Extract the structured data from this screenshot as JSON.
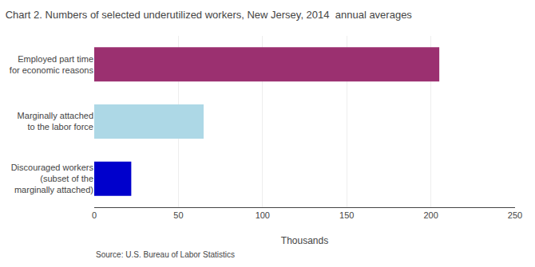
{
  "chart_data": {
    "type": "bar",
    "orientation": "horizontal",
    "title": "Chart 2. Numbers of selected underutilized workers, New Jersey, 2014  annual averages",
    "categories": [
      "Discouraged workers\n(subset of the\nmarginally attached)",
      "Marginally attached\nto the labor force",
      "Employed part time\nfor economic reasons"
    ],
    "values": [
      22,
      65,
      205
    ],
    "colors": [
      "#0000CC",
      "#ADD8E6",
      "#9B3070"
    ],
    "xlim": [
      0,
      250
    ],
    "xticks": [
      0,
      50,
      100,
      150,
      200,
      250
    ],
    "xlabel": "Thousands",
    "grid": true,
    "annotations": [
      "Source: U.S. Bureau of Labor Statistics"
    ]
  }
}
